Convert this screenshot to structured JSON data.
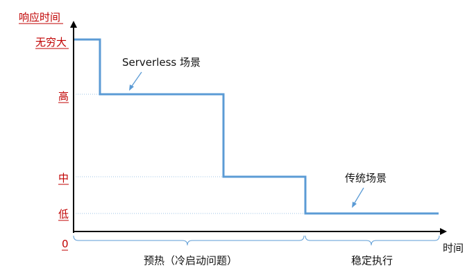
{
  "diagram": {
    "y_axis_title": "响应时间",
    "x_axis_title": "时间",
    "origin_label": "0",
    "levels": [
      {
        "label": "无穷大",
        "rank": 3
      },
      {
        "label": "高",
        "rank": 2
      },
      {
        "label": "中",
        "rank": 1
      },
      {
        "label": "低",
        "rank": 0
      }
    ],
    "callouts": {
      "serverless": "Serverless 场景",
      "traditional": "传统场景"
    },
    "phases": {
      "warmup": "预热（冷启动问题）",
      "stable": "稳定执行"
    },
    "colors": {
      "accent_red": "#c00000",
      "line_blue": "#5b9bd5",
      "axis": "#000000"
    }
  }
}
